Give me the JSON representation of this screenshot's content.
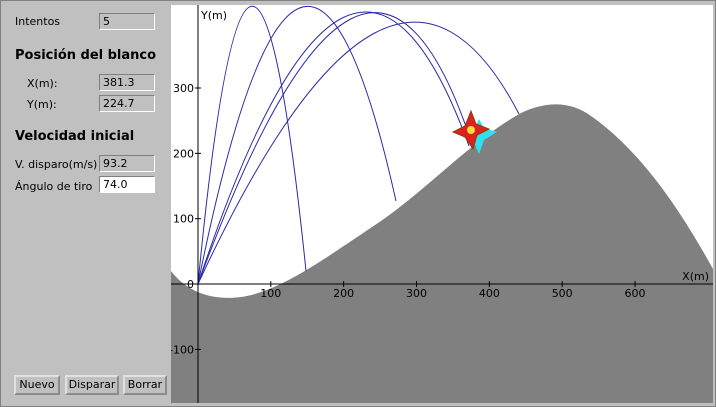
{
  "panel": {
    "attempts_label": "Intentos",
    "attempts": "5",
    "target_heading": "Posición del blanco",
    "target_x_label": "X(m):",
    "target_x": "381.3",
    "target_y_label": "Y(m):",
    "target_y": "224.7",
    "velocity_heading": "Velocidad inicial",
    "speed_label": "V. disparo(m/s)",
    "speed": "93.2",
    "angle_label": "Ángulo de tiro",
    "angle": "74.0"
  },
  "buttons": [
    "Nuevo",
    "Disparar",
    "Borrar"
  ],
  "plot": {
    "x_label": "X(m)",
    "y_label": "Y(m)",
    "xlim": [
      -37,
      707
    ],
    "ylim": [
      -182,
      427
    ],
    "xticks": [
      100,
      200,
      300,
      400,
      500,
      600
    ],
    "yticks": [
      -100,
      0,
      100,
      200,
      300
    ]
  }
}
